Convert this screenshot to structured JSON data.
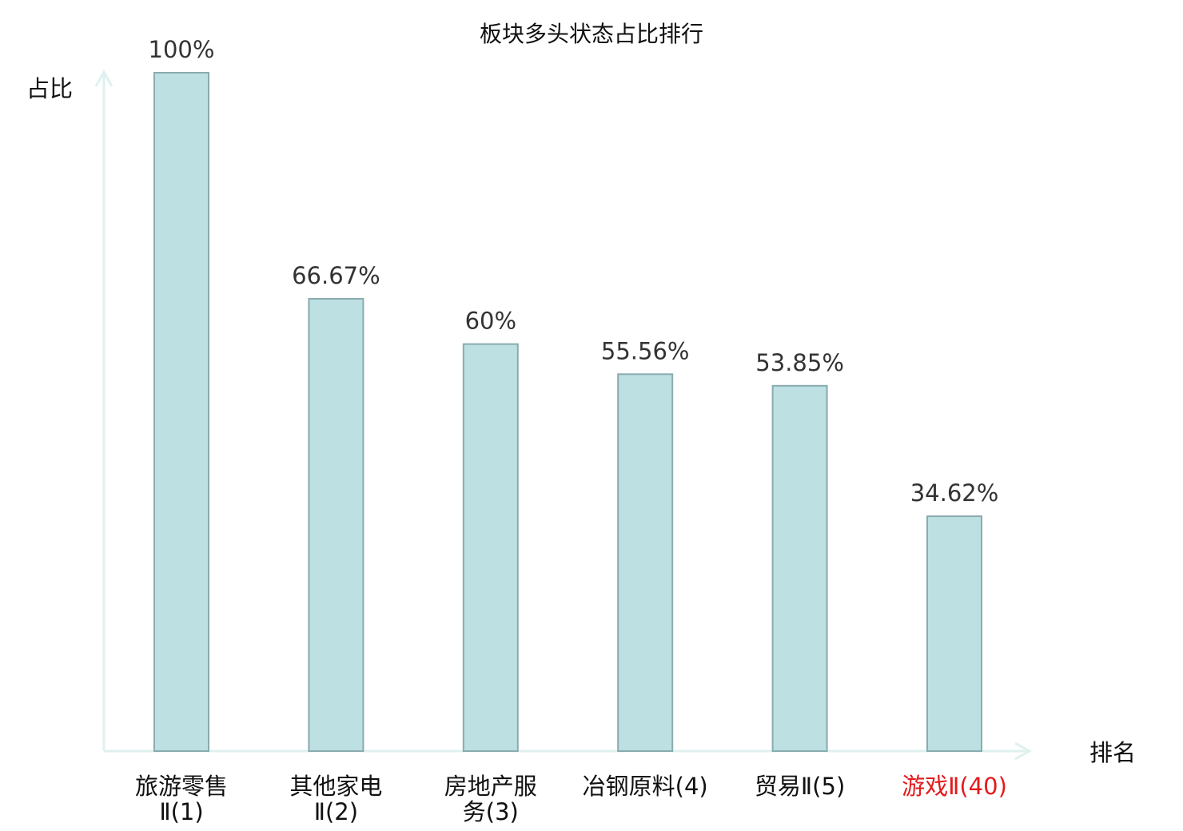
{
  "chart_data": {
    "type": "bar",
    "title": "板块多头状态占比排行",
    "ylabel": "占比",
    "xlabel": "排名",
    "categories": [
      {
        "lines": [
          "旅游零售",
          "Ⅱ(1)"
        ],
        "highlight": false
      },
      {
        "lines": [
          "其他家电",
          "Ⅱ(2)"
        ],
        "highlight": false
      },
      {
        "lines": [
          "房地产服",
          "务(3)"
        ],
        "highlight": false
      },
      {
        "lines": [
          "冶钢原料(4)"
        ],
        "highlight": false
      },
      {
        "lines": [
          "贸易Ⅱ(5)"
        ],
        "highlight": false
      },
      {
        "lines": [
          "游戏Ⅱ(40)"
        ],
        "highlight": true
      }
    ],
    "values": [
      100,
      66.67,
      60,
      55.56,
      53.85,
      34.62
    ],
    "value_labels": [
      "100%",
      "66.67%",
      "60%",
      "55.56%",
      "53.85%",
      "34.62%"
    ],
    "ylim": [
      0,
      100
    ],
    "grid": false,
    "colors": {
      "bar_fill": "#bde0e3",
      "bar_stroke": "#8aabb0",
      "axis": "#dff1ef",
      "highlight_label": "#e31a1c"
    }
  }
}
